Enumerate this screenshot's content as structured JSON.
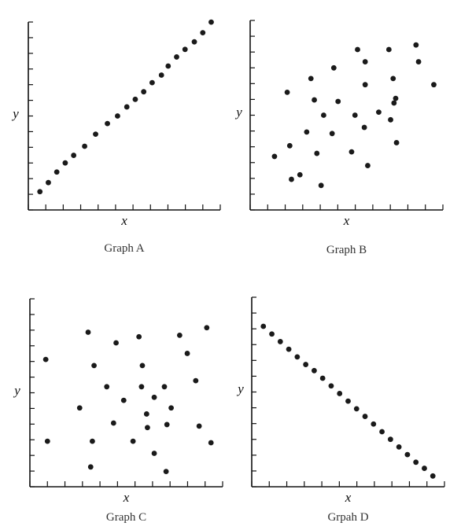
{
  "chart_data": [
    {
      "type": "scatter",
      "title": "Graph A",
      "xlabel": "x",
      "ylabel": "y",
      "xlim": [
        0,
        22
      ],
      "ylim": [
        0,
        12
      ],
      "x_ticks": 11,
      "y_ticks": 12,
      "points": [
        [
          1,
          1
        ],
        [
          2,
          1.6
        ],
        [
          3,
          2.3
        ],
        [
          4,
          2.9
        ],
        [
          5,
          3.4
        ],
        [
          6.3,
          4.0
        ],
        [
          7.6,
          4.8
        ],
        [
          9,
          5.5
        ],
        [
          10.2,
          6.0
        ],
        [
          11.3,
          6.6
        ],
        [
          12.3,
          7.1
        ],
        [
          13.3,
          7.6
        ],
        [
          14.3,
          8.2
        ],
        [
          15.4,
          8.7
        ],
        [
          16.2,
          9.3
        ],
        [
          17.2,
          9.9
        ],
        [
          18.2,
          10.4
        ],
        [
          19.3,
          10.9
        ],
        [
          20.3,
          11.5
        ],
        [
          21.3,
          12.2
        ]
      ]
    },
    {
      "type": "scatter",
      "title": "Graph B",
      "xlabel": "x",
      "ylabel": "y",
      "xlim": [
        0,
        22
      ],
      "ylim": [
        0,
        12
      ],
      "x_ticks": 11,
      "y_ticks": 12,
      "points": [
        [
          2.5,
          3.3
        ],
        [
          4.0,
          7.5
        ],
        [
          4.3,
          4.0
        ],
        [
          4.5,
          1.8
        ],
        [
          5.5,
          2.1
        ],
        [
          6.3,
          4.9
        ],
        [
          6.8,
          8.4
        ],
        [
          7.2,
          7.0
        ],
        [
          7.5,
          3.5
        ],
        [
          8.0,
          1.4
        ],
        [
          8.3,
          6.0
        ],
        [
          9.3,
          4.8
        ],
        [
          9.5,
          9.1
        ],
        [
          10.0,
          6.9
        ],
        [
          11.6,
          3.6
        ],
        [
          12.0,
          6.0
        ],
        [
          12.3,
          10.3
        ],
        [
          13.1,
          5.2
        ],
        [
          13.2,
          8.0
        ],
        [
          13.2,
          9.5
        ],
        [
          13.5,
          2.7
        ],
        [
          14.8,
          6.2
        ],
        [
          16.0,
          10.3
        ],
        [
          16.2,
          5.7
        ],
        [
          16.5,
          8.4
        ],
        [
          16.6,
          6.8
        ],
        [
          16.8,
          7.1
        ],
        [
          16.9,
          4.2
        ],
        [
          19.2,
          10.6
        ],
        [
          19.5,
          9.5
        ],
        [
          21.3,
          8.0
        ]
      ]
    },
    {
      "type": "scatter",
      "title": "Graph C",
      "xlabel": "x",
      "ylabel": "y",
      "xlim": [
        0,
        22
      ],
      "ylim": [
        0,
        12
      ],
      "x_ticks": 11,
      "y_ticks": 12,
      "points": [
        [
          1.5,
          8.2
        ],
        [
          1.7,
          2.8
        ],
        [
          5.5,
          5.0
        ],
        [
          6.5,
          10.0
        ],
        [
          6.8,
          1.1
        ],
        [
          7.0,
          2.8
        ],
        [
          7.2,
          7.8
        ],
        [
          8.7,
          6.4
        ],
        [
          9.5,
          4.0
        ],
        [
          9.8,
          9.3
        ],
        [
          10.7,
          5.5
        ],
        [
          11.8,
          2.8
        ],
        [
          12.5,
          9.7
        ],
        [
          12.8,
          6.4
        ],
        [
          12.9,
          7.8
        ],
        [
          13.4,
          4.6
        ],
        [
          13.5,
          3.7
        ],
        [
          14.3,
          5.7
        ],
        [
          14.3,
          2.0
        ],
        [
          15.5,
          6.4
        ],
        [
          15.7,
          0.8
        ],
        [
          15.8,
          3.9
        ],
        [
          16.3,
          5.0
        ],
        [
          17.3,
          9.8
        ],
        [
          18.2,
          8.6
        ],
        [
          19.2,
          6.8
        ],
        [
          19.6,
          3.8
        ],
        [
          20.5,
          10.3
        ],
        [
          21.0,
          2.7
        ]
      ]
    },
    {
      "type": "scatter",
      "title": "Grpah D",
      "xlabel": "x",
      "ylabel": "y",
      "xlim": [
        0,
        22
      ],
      "ylim": [
        0,
        12
      ],
      "x_ticks": 11,
      "y_ticks": 12,
      "points": [
        [
          1,
          10.3
        ],
        [
          2,
          9.8
        ],
        [
          3,
          9.3
        ],
        [
          4,
          8.8
        ],
        [
          5,
          8.3
        ],
        [
          6,
          7.8
        ],
        [
          7,
          7.4
        ],
        [
          8,
          6.9
        ],
        [
          9,
          6.4
        ],
        [
          10,
          5.9
        ],
        [
          11,
          5.4
        ],
        [
          12,
          4.9
        ],
        [
          13,
          4.4
        ],
        [
          14,
          3.9
        ],
        [
          15,
          3.4
        ],
        [
          16,
          2.9
        ],
        [
          17,
          2.4
        ],
        [
          18,
          1.9
        ],
        [
          19,
          1.4
        ],
        [
          20,
          1.0
        ],
        [
          21,
          0.5
        ]
      ]
    }
  ]
}
